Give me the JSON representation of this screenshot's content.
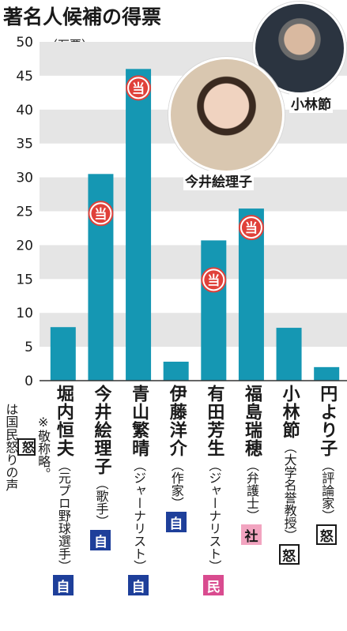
{
  "title": "著名人候補の得票",
  "unit_label": "（万票）",
  "colors": {
    "bar": "#1597b3",
    "band": "#e5e5e5",
    "win_badge": "#e0413a"
  },
  "photos": [
    {
      "name": "小林節",
      "icon": "portrait-photo"
    },
    {
      "name": "今井絵理子",
      "icon": "portrait-photo"
    }
  ],
  "note": {
    "prefix": "※敬称略。",
    "box": "怒",
    "suffix": "は国民怒りの声"
  },
  "chart_data": {
    "type": "bar",
    "title": "著名人候補の得票",
    "ylabel": "（万票）",
    "xlabel": "",
    "ylim": [
      0,
      50
    ],
    "yticks": [
      0,
      5,
      10,
      15,
      20,
      25,
      30,
      35,
      40,
      45,
      50
    ],
    "categories": [
      "堀内恒夫",
      "今井絵理子",
      "青山繁晴",
      "伊藤洋介",
      "有田芳生",
      "福島瑞穂",
      "小林節",
      "円より子"
    ],
    "occupations": [
      "（元プロ野球選手）",
      "（歌手）",
      "（ジャーナリスト）",
      "（作家）",
      "（ジャーナリスト）",
      "（弁護士）",
      "（大学名誉教授）",
      "（評論家）"
    ],
    "parties": [
      "自",
      "自",
      "自",
      "自",
      "民",
      "社",
      "怒",
      "怒"
    ],
    "values": [
      7.9,
      30.5,
      46.0,
      2.8,
      20.7,
      25.4,
      7.8,
      2.0
    ],
    "elected": [
      false,
      true,
      true,
      false,
      true,
      true,
      false,
      false
    ],
    "win_mark": "当",
    "grid": "alternating horizontal bands",
    "legend": "none"
  }
}
